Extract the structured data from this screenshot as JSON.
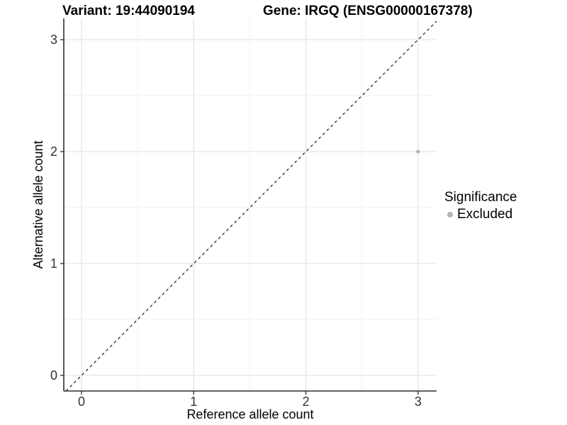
{
  "chart_data": {
    "type": "scatter",
    "titles": [
      "Variant: 19:44090194",
      "Gene: IRGQ (ENSG00000167378)"
    ],
    "xlabel": "Reference allele count",
    "ylabel": "Alternative allele count",
    "xlim": [
      -0.158,
      3.165
    ],
    "ylim": [
      -0.139,
      3.19
    ],
    "x_ticks": [
      0,
      1,
      2,
      3
    ],
    "y_ticks": [
      0,
      1,
      2,
      3
    ],
    "minor_x": [
      0.5,
      1.5,
      2.5
    ],
    "minor_y": [
      0.5,
      1.5,
      2.5
    ],
    "points": [
      {
        "x": 3,
        "y": 2,
        "significance": "Excluded"
      }
    ],
    "identity_line": {
      "slope": 1,
      "intercept": 0,
      "style": "dashed"
    },
    "legend": {
      "title": "Significance",
      "position": "right",
      "entries": [
        {
          "label": "Excluded",
          "color": "#b3b3b3"
        }
      ]
    },
    "grid": {
      "major_color": "#e5e5e5",
      "minor_color": "#f2f2f2",
      "show": true
    },
    "colors": {
      "axis_line": "#2e2e2e",
      "tick_text": "#333333",
      "axis_title": "#000000",
      "identity_line": "#1a1a1a",
      "point": "#b3b3b3"
    }
  }
}
